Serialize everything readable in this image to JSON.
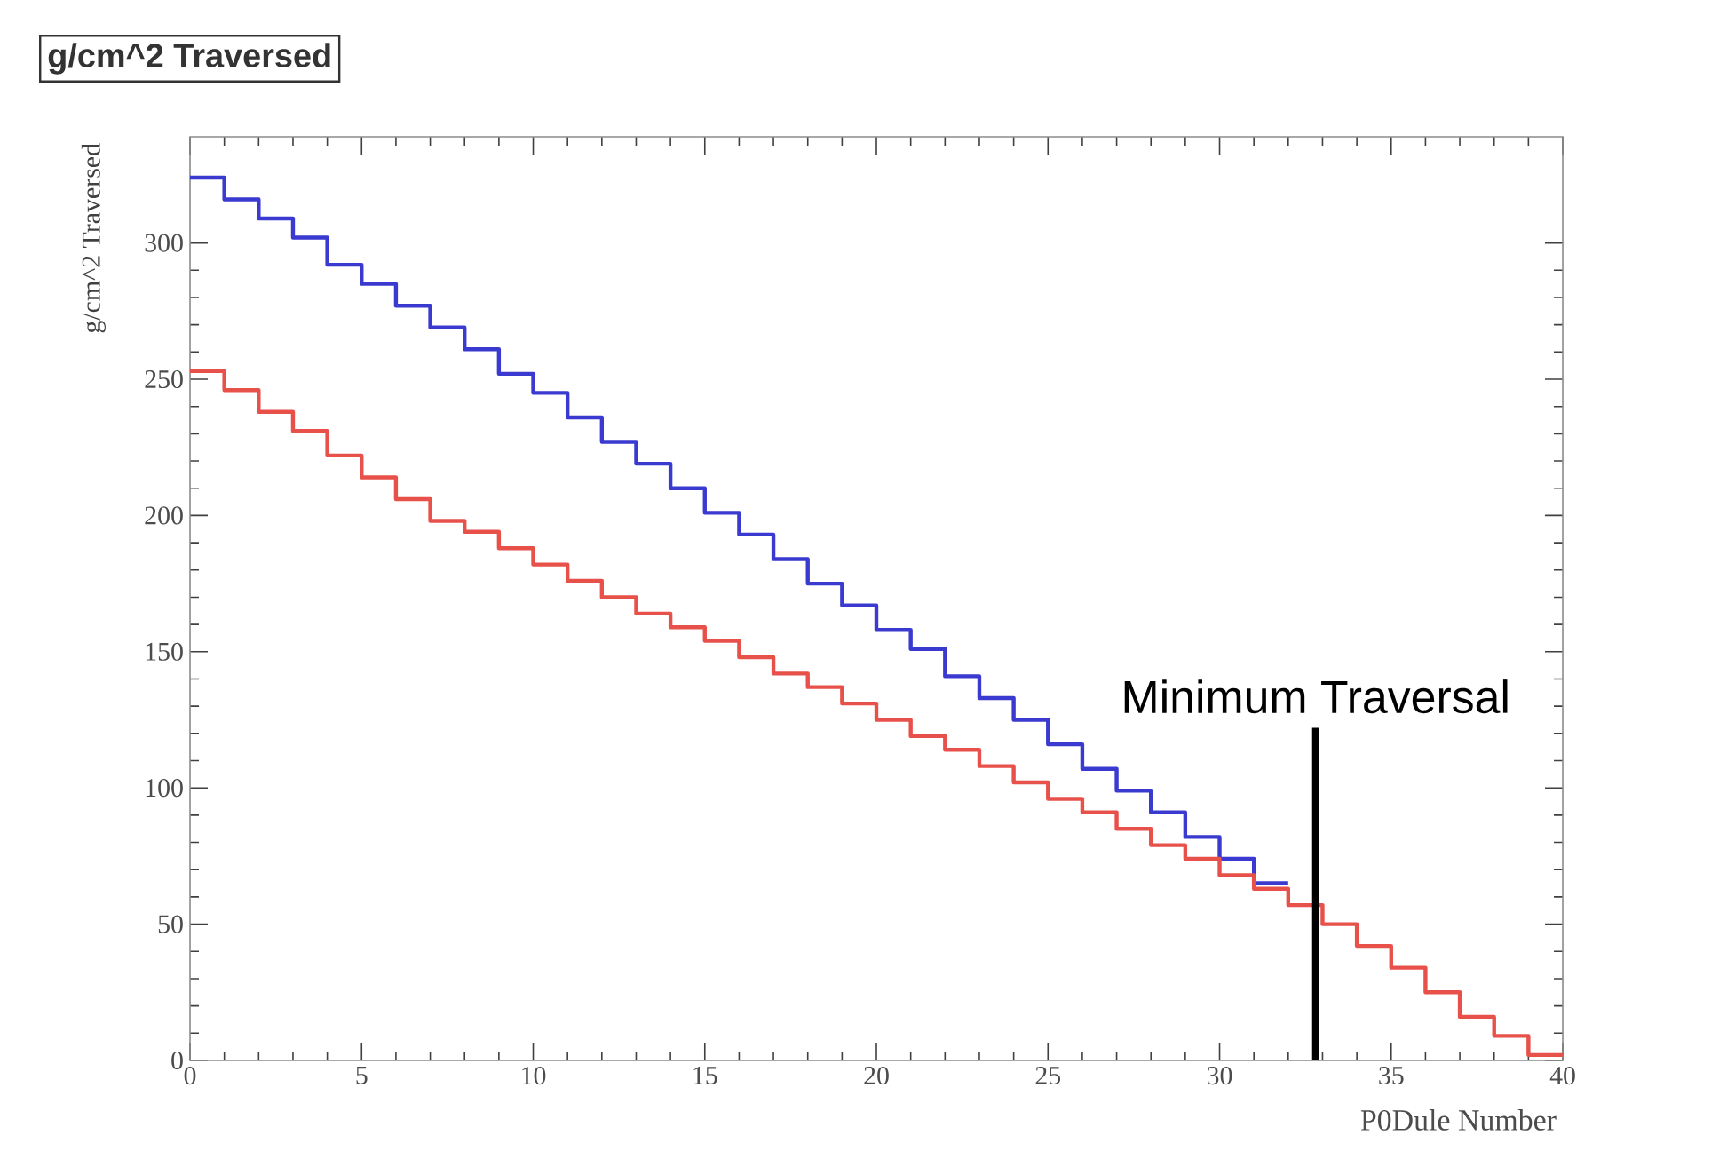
{
  "chart_data": {
    "type": "histogram",
    "title": "g/cm^2 Traversed",
    "xlabel": "P0Dule Number",
    "ylabel": "g/cm^2 Traversed",
    "bins": [
      0,
      1,
      2,
      3,
      4,
      5,
      6,
      7,
      8,
      9,
      10,
      11,
      12,
      13,
      14,
      15,
      16,
      17,
      18,
      19,
      20,
      21,
      22,
      23,
      24,
      25,
      26,
      27,
      28,
      29,
      30,
      31,
      32,
      33,
      34,
      35,
      36,
      37,
      38,
      39,
      40
    ],
    "series": [
      {
        "color": "#3a3ad0",
        "bins": [
          0,
          1,
          2,
          3,
          4,
          5,
          6,
          7,
          8,
          9,
          10,
          11,
          12,
          13,
          14,
          15,
          16,
          17,
          18,
          19,
          20,
          21,
          22,
          23,
          24,
          25,
          26,
          27,
          28,
          29,
          30,
          31,
          32
        ],
        "values": [
          324,
          316,
          309,
          302,
          292,
          285,
          277,
          269,
          261,
          252,
          245,
          236,
          227,
          219,
          210,
          201,
          193,
          184,
          175,
          167,
          158,
          151,
          141,
          133,
          125,
          116,
          107,
          99,
          91,
          82,
          74,
          65
        ]
      },
      {
        "color": "#e8504a",
        "values": [
          253,
          246,
          238,
          231,
          222,
          214,
          206,
          198,
          194,
          188,
          182,
          176,
          170,
          164,
          159,
          154,
          148,
          142,
          137,
          131,
          125,
          119,
          114,
          108,
          102,
          96,
          91,
          85,
          79,
          74,
          68,
          63,
          57,
          50,
          42,
          34,
          25,
          16,
          9,
          2
        ]
      }
    ],
    "xlim": [
      0,
      40
    ],
    "ylim": [
      0,
      339
    ],
    "xticks": [
      0,
      5,
      10,
      15,
      20,
      25,
      30,
      35,
      40
    ],
    "yticks": [
      0,
      50,
      100,
      150,
      200,
      250,
      300
    ],
    "grid": false,
    "ref_lines": [
      {
        "axis": "x",
        "value": 32.8,
        "label": "Minimum Traversal",
        "color": "#000000"
      }
    ]
  }
}
